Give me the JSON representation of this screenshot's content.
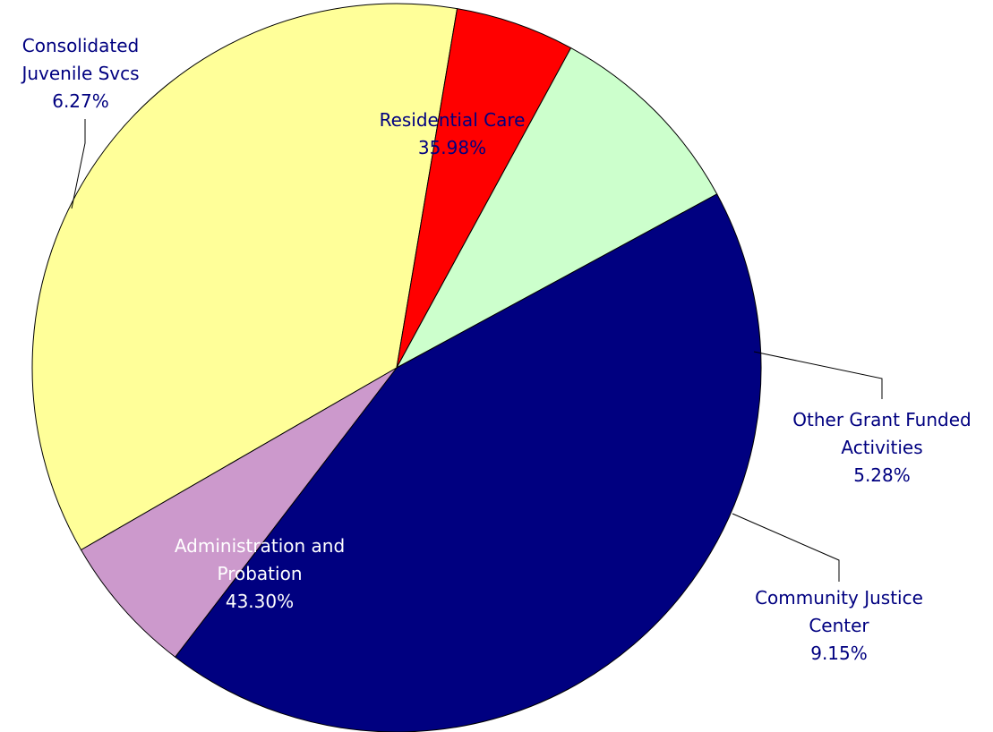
{
  "chart_data": {
    "type": "pie",
    "slices": [
      {
        "label_lines": [
          "Residential Care",
          "35.98%"
        ],
        "value": 35.98,
        "color": "#ffff99",
        "label_color": "#000080"
      },
      {
        "label_lines": [
          "Other Grant Funded",
          "Activities",
          "5.28%"
        ],
        "value": 5.28,
        "color": "#ff0000",
        "label_color": "#000080"
      },
      {
        "label_lines": [
          "Community Justice",
          "Center",
          "9.15%"
        ],
        "value": 9.15,
        "color": "#ccffcc",
        "label_color": "#000080"
      },
      {
        "label_lines": [
          "Administration and",
          "Probation",
          "43.30%"
        ],
        "value": 43.3,
        "color": "#000080",
        "label_color": "#ffffff"
      },
      {
        "label_lines": [
          "Consolidated",
          "Juvenile Svcs",
          "6.27%"
        ],
        "value": 6.27,
        "color": "#cc99cc",
        "label_color": "#000080"
      }
    ]
  }
}
